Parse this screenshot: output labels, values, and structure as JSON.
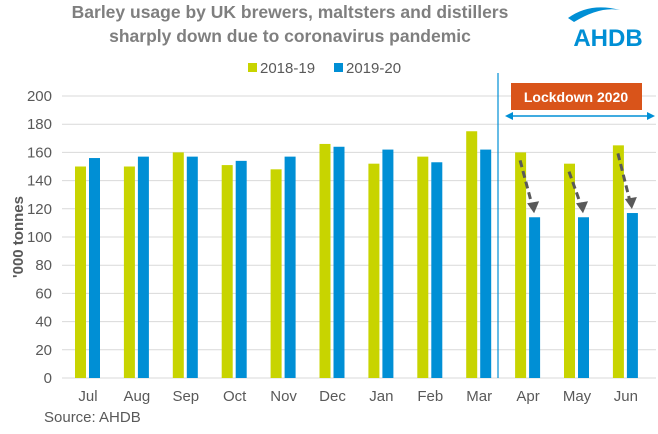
{
  "title_lines": [
    "Barley usage by UK brewers, maltsters and distillers",
    "sharply down due to coronavirus pandemic"
  ],
  "logo_text": "AHDB",
  "source": "Source: AHDB",
  "annotation": {
    "label": "Lockdown 2020",
    "color": "#d9541a"
  },
  "colors": {
    "2018-19": "#c8d400",
    "2019-20": "#008fd5",
    "grid": "#d9d9d9",
    "arrow": "#595959"
  },
  "chart_data": {
    "type": "bar",
    "categories": [
      "Jul",
      "Aug",
      "Sep",
      "Oct",
      "Nov",
      "Dec",
      "Jan",
      "Feb",
      "Mar",
      "Apr",
      "May",
      "Jun"
    ],
    "series": [
      {
        "name": "2018-19",
        "values": [
          150,
          150,
          160,
          151,
          148,
          166,
          152,
          157,
          175,
          160,
          152,
          165
        ]
      },
      {
        "name": "2019-20",
        "values": [
          156,
          157,
          157,
          154,
          157,
          164,
          162,
          153,
          162,
          114,
          114,
          117
        ]
      }
    ],
    "ylabel": "'000 tonnes",
    "ylim": [
      0,
      200
    ],
    "yticks": [
      0,
      20,
      40,
      60,
      80,
      100,
      120,
      140,
      160,
      180,
      200
    ],
    "grid": true,
    "legend": "top"
  }
}
